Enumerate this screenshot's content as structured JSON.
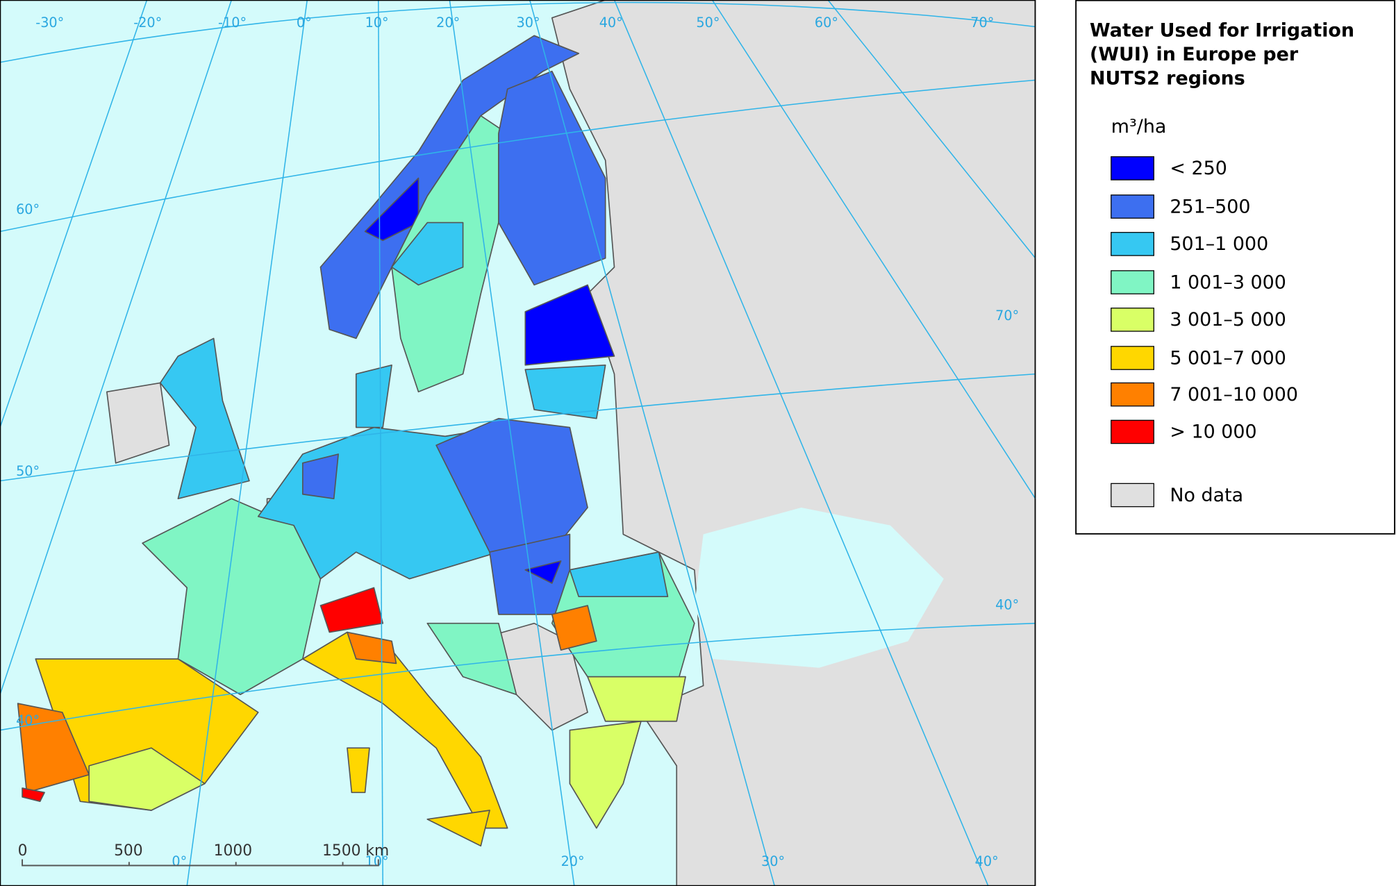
{
  "legend": {
    "title_lines": [
      "Water Used for Irrigation",
      "(WUI) in Europe per",
      "NUTS2 regions"
    ],
    "unit": "m³/ha",
    "items": [
      {
        "label": "< 250",
        "color": "#0000ff"
      },
      {
        "label": "251–500",
        "color": "#3d6ff0"
      },
      {
        "label": "501–1 000",
        "color": "#36c8f2"
      },
      {
        "label": "1 001–3 000",
        "color": "#80f5c4"
      },
      {
        "label": "3 001–5 000",
        "color": "#d9ff66"
      },
      {
        "label": "5 001–7 000",
        "color": "#ffd700"
      },
      {
        "label": "7 001–10 000",
        "color": "#ff8000"
      },
      {
        "label": "> 10 000",
        "color": "#ff0000"
      }
    ],
    "no_data": {
      "label": "No data",
      "color": "#e0e0e0"
    }
  },
  "map": {
    "top_labels": [
      "-30°",
      "-20°",
      "-10°",
      "0°",
      "10°",
      "20°",
      "30°",
      "40°",
      "50°",
      "60°",
      "70°"
    ],
    "left_labels": [
      "60°",
      "50°",
      "40°"
    ],
    "right_labels": [
      "70°",
      "40°"
    ],
    "bottom_labels": [
      "0°",
      "10°",
      "20°",
      "30°",
      "40°"
    ]
  },
  "scale_bar": {
    "labels": [
      "0",
      "500",
      "1000",
      "1500 km"
    ]
  }
}
